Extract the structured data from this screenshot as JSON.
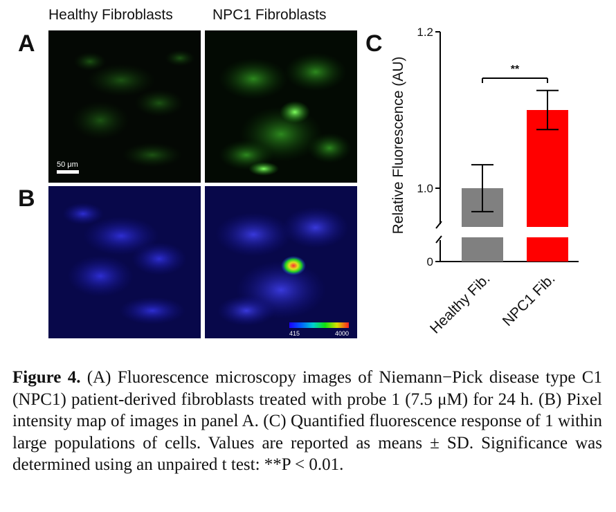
{
  "columns": {
    "left": "Healthy Fibroblasts",
    "right": "NPC1 Fibroblasts"
  },
  "panels": {
    "a": "A",
    "b": "B",
    "c": "C"
  },
  "scale_bar": "50 μm",
  "colorbar": {
    "min": "415",
    "max": "4000"
  },
  "chart_data": {
    "type": "bar",
    "categories": [
      "Healthy Fib.",
      "NPC1 Fib."
    ],
    "values": [
      1.0,
      1.1
    ],
    "errors": [
      0.03,
      0.025
    ],
    "colors": [
      "#808080",
      "#ff0000"
    ],
    "ylabel": "Relative Fluorescence (AU)",
    "yticks": [
      "0",
      "1.0",
      "1.2"
    ],
    "axis_break": true,
    "ylim_upper": [
      0.95,
      1.2
    ],
    "significance": "**"
  },
  "caption": {
    "label": "Figure 4.",
    "text": "(A) Fluorescence microscopy images of Niemann−Pick disease type C1 (NPC1) patient-derived fibroblasts treated with probe 1 (7.5 μM) for 24 h. (B) Pixel intensity map of images in panel A. (C) Quantified fluorescence response of 1 within large populations of cells. Values are reported as means ± SD. Significance was determined using an unpaired t test: **P < 0.01."
  }
}
